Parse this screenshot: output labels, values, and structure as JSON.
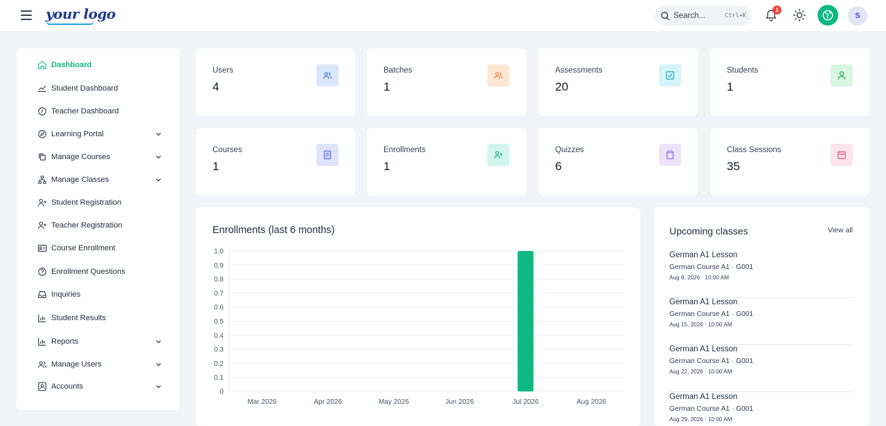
{
  "header": {
    "logo_text": "your logo",
    "search_placeholder": "Search...",
    "search_shortcut": "Ctrl+K",
    "notification_count": "1",
    "avatar_initial": "S"
  },
  "sidebar": {
    "items": [
      {
        "label": "Dashboard",
        "icon": "home-icon",
        "active": true,
        "chevron": false
      },
      {
        "label": "Student Dashboard",
        "icon": "trend-icon",
        "chevron": false
      },
      {
        "label": "Teacher Dashboard",
        "icon": "clock-icon",
        "chevron": false
      },
      {
        "label": "Learning Portal",
        "icon": "compass-icon",
        "chevron": true
      },
      {
        "label": "Manage Courses",
        "icon": "copy-icon",
        "chevron": true
      },
      {
        "label": "Manage Classes",
        "icon": "network-icon",
        "chevron": true
      },
      {
        "label": "Student Registration",
        "icon": "user-plus-icon",
        "chevron": false
      },
      {
        "label": "Teacher Registration",
        "icon": "user-plus-icon",
        "chevron": false
      },
      {
        "label": "Course Enrollment",
        "icon": "id-card-icon",
        "chevron": false
      },
      {
        "label": "Enrollment Questions",
        "icon": "question-icon",
        "chevron": false
      },
      {
        "label": "Inquiries",
        "icon": "inbox-icon",
        "chevron": false
      },
      {
        "label": "Student Results",
        "icon": "bar-chart-icon",
        "chevron": false
      },
      {
        "label": "Reports",
        "icon": "bar-chart-icon",
        "chevron": true
      },
      {
        "label": "Manage Users",
        "icon": "users-icon",
        "chevron": true
      },
      {
        "label": "Accounts",
        "icon": "contact-icon",
        "chevron": true
      }
    ]
  },
  "stats": [
    {
      "label": "Users",
      "value": "4",
      "icon": "users-icon",
      "bg": "#dbe7fb",
      "fg": "#3b6fd8"
    },
    {
      "label": "Batches",
      "value": "1",
      "icon": "users-icon",
      "bg": "#fde8d4",
      "fg": "#ea7a2a"
    },
    {
      "label": "Assessments",
      "value": "20",
      "icon": "check-square-icon",
      "bg": "#d5f4f9",
      "fg": "#0ea5c6"
    },
    {
      "label": "Students",
      "value": "1",
      "icon": "user-icon",
      "bg": "#d9f6e3",
      "fg": "#16a34a"
    },
    {
      "label": "Courses",
      "value": "1",
      "icon": "book-icon",
      "bg": "#dfe3fb",
      "fg": "#4f5fd6"
    },
    {
      "label": "Enrollments",
      "value": "1",
      "icon": "user-plus-icon",
      "bg": "#d3f6ec",
      "fg": "#10a37f"
    },
    {
      "label": "Quizzes",
      "value": "6",
      "icon": "clipboard-icon",
      "bg": "#ece3fb",
      "fg": "#8b5cf6"
    },
    {
      "label": "Class Sessions",
      "value": "35",
      "icon": "calendar-icon",
      "bg": "#fde3ec",
      "fg": "#e0567f"
    }
  ],
  "chart_data": {
    "type": "bar",
    "title": "Enrollments (last 6 months)",
    "categories": [
      "Mar 2026",
      "Apr 2026",
      "May 2026",
      "Jun 2026",
      "Jul 2026",
      "Aug 2026"
    ],
    "values": [
      0,
      0,
      0,
      0,
      1,
      0
    ],
    "ylim": [
      0,
      1.0
    ],
    "yticks": [
      "0",
      "0.1",
      "0.2",
      "0.3",
      "0.4",
      "0.5",
      "0.6",
      "0.7",
      "0.8",
      "0.9",
      "1.0"
    ],
    "grid": true,
    "bar_color": "#10b981"
  },
  "upcoming": {
    "title": "Upcoming classes",
    "view_all": "View all",
    "items": [
      {
        "title": "German A1 Lesson",
        "course": "German Course A1 · G001",
        "date": "Aug 8, 2026 · 10:00 AM"
      },
      {
        "title": "German A1 Lesson",
        "course": "German Course A1 · G001",
        "date": "Aug 15, 2026 · 10:00 AM"
      },
      {
        "title": "German A1 Lesson",
        "course": "German Course A1 · G001",
        "date": "Aug 22, 2026 · 10:00 AM"
      },
      {
        "title": "German A1 Lesson",
        "course": "German Course A1 · G001",
        "date": "Aug 29, 2026 · 10:00 AM"
      }
    ]
  }
}
